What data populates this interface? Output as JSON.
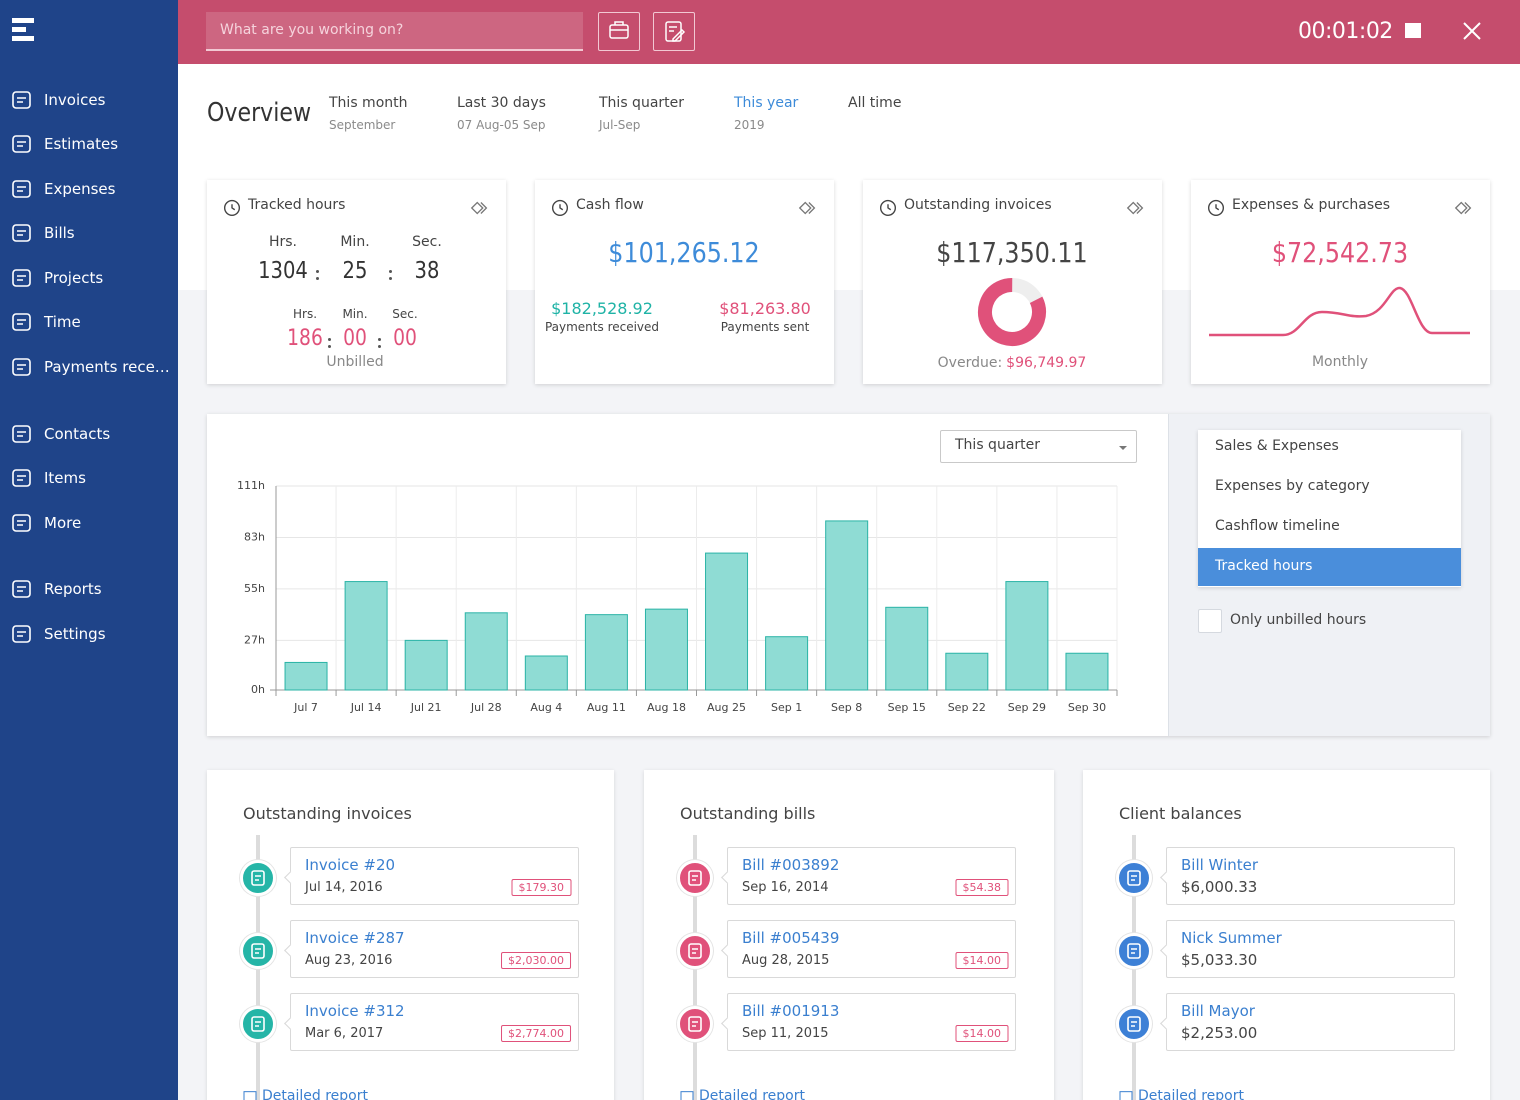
{
  "sidebar": {
    "nav": [
      "Invoices",
      "Estimates",
      "Expenses",
      "Bills",
      "Projects",
      "Time",
      "Payments rece…",
      "Contacts",
      "Items",
      "More",
      "Reports",
      "Settings"
    ]
  },
  "topbar": {
    "search_placeholder": "What are you working on?",
    "timer": "00:01:02"
  },
  "overview": {
    "title": "Overview",
    "periods": [
      {
        "label": "This month",
        "sub": "September"
      },
      {
        "label": "Last 30 days",
        "sub": "07 Aug-05 Sep"
      },
      {
        "label": "This quarter",
        "sub": "Jul-Sep"
      },
      {
        "label": "This year",
        "sub": "2019",
        "active": true
      },
      {
        "label": "All time"
      }
    ]
  },
  "cards": {
    "tracked_hours": {
      "title": "Tracked hours",
      "units": [
        "Hrs.",
        "Min.",
        "Sec."
      ],
      "total": [
        "1304",
        "25",
        "38"
      ],
      "unbilled": [
        "186",
        "00",
        "00"
      ],
      "unbilled_label": "Unbilled"
    },
    "cash_flow": {
      "title": "Cash flow",
      "total": "$101,265.12",
      "received": "$182,528.92",
      "received_label": "Payments received",
      "sent": "$81,263.80",
      "sent_label": "Payments sent"
    },
    "outstanding_invoices": {
      "title": "Outstanding invoices",
      "total": {
        "value": 117350.11,
        "label": "$117,350.11"
      },
      "overdue_label": "Overdue:",
      "overdue": {
        "value": 96749.97,
        "label": "$96,749.97"
      }
    },
    "expenses": {
      "title": "Expenses & purchases",
      "total": "$72,542.73",
      "caption": "Monthly"
    }
  },
  "report_panel": {
    "dropdown": "This quarter",
    "options": [
      "Sales & Expenses",
      "Expenses by category",
      "Cashflow timeline",
      "Tracked hours"
    ],
    "active_option": 3,
    "checkbox_label": "Only unbilled hours"
  },
  "chart_data": {
    "type": "bar",
    "categories": [
      "Jul 7",
      "Jul 14",
      "Jul 21",
      "Jul 28",
      "Aug 4",
      "Aug 11",
      "Aug 18",
      "Aug 25",
      "Sep 1",
      "Sep 8",
      "Sep 15",
      "Sep 22",
      "Sep 29",
      "Sep 30"
    ],
    "values": [
      15,
      59,
      27,
      42,
      18.5,
      41,
      44,
      74.5,
      29,
      92,
      45,
      20,
      59,
      20
    ],
    "color": "#8fdcd4",
    "edgecolor": "#2ab3a6",
    "ylim": [
      0,
      111
    ],
    "yticks": [
      {
        "value": 0,
        "label": "0h"
      },
      {
        "value": 27,
        "label": "27h"
      },
      {
        "value": 55,
        "label": "55h"
      },
      {
        "value": 83,
        "label": "83h"
      },
      {
        "value": 111,
        "label": "111h"
      }
    ],
    "grid": true
  },
  "lists": [
    {
      "title": "Outstanding invoices",
      "kind": "invoice",
      "items": [
        {
          "title": "Invoice #20",
          "date": "Jul 14, 2016",
          "amount": "$179.30"
        },
        {
          "title": "Invoice #287",
          "date": "Aug 23, 2016",
          "amount": "$2,030.00"
        },
        {
          "title": "Invoice #312",
          "date": "Mar 6, 2017",
          "amount": "$2,774.00"
        }
      ],
      "link": "Detailed report"
    },
    {
      "title": "Outstanding bills",
      "kind": "bill",
      "items": [
        {
          "title": "Bill #003892",
          "date": "Sep 16, 2014",
          "amount": "$54.38"
        },
        {
          "title": "Bill #005439",
          "date": "Aug 28, 2015",
          "amount": "$14.00"
        },
        {
          "title": "Bill #001913",
          "date": "Sep 11, 2015",
          "amount": "$14.00"
        }
      ],
      "link": "Detailed report"
    },
    {
      "title": "Client balances",
      "kind": "client",
      "items": [
        {
          "title": "Bill Winter",
          "amount": "$6,000.33"
        },
        {
          "title": "Nick Summer",
          "amount": "$5,033.30"
        },
        {
          "title": "Bill Mayor",
          "amount": "$2,253.00"
        }
      ],
      "link": "Detailed report"
    }
  ]
}
